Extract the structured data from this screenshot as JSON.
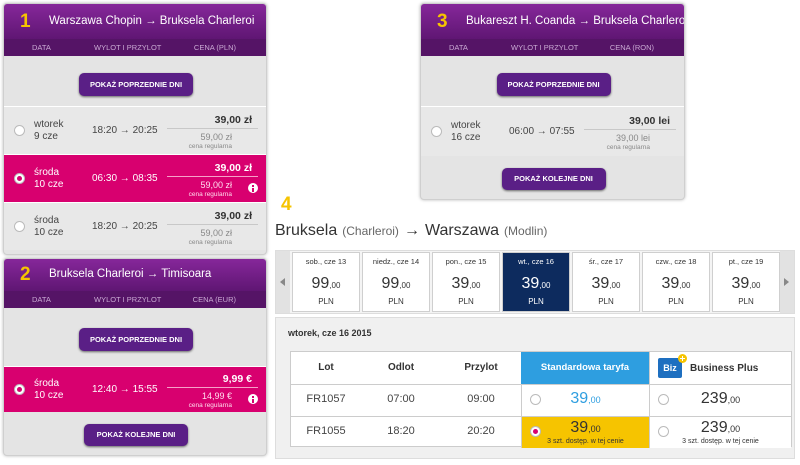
{
  "panels": [
    {
      "number": "1",
      "route": "Warszawa Chopin → Bruksela Charleroi",
      "columns": [
        "DATA",
        "WYLOT I PRZYLOT",
        "CENA (PLN)"
      ],
      "top_button": "POKAŻ POPRZEDNIE DNI",
      "rows": [
        {
          "day": "wtorek",
          "date": "9 cze",
          "times": "18:20 → 20:25",
          "price": "39,00 zł",
          "regular_price": "59,00 zł",
          "regular_label": "cena regularna",
          "selected": false
        },
        {
          "day": "środa",
          "date": "10 cze",
          "times": "06:30 → 08:35",
          "price": "39,00 zł",
          "regular_price": "59,00 zł",
          "regular_label": "cena regularna",
          "selected": true
        },
        {
          "day": "środa",
          "date": "10 cze",
          "times": "18:20 → 20:25",
          "price": "39,00 zł",
          "regular_price": "59,00 zł",
          "regular_label": "cena regularna",
          "selected": false
        }
      ]
    },
    {
      "number": "2",
      "route": "Bruksela Charleroi → Timisoara",
      "columns": [
        "DATA",
        "WYLOT I PRZYLOT",
        "CENA (EUR)"
      ],
      "top_button": "POKAŻ POPRZEDNIE DNI",
      "rows": [
        {
          "day": "środa",
          "date": "10 cze",
          "times": "12:40 → 15:55",
          "price": "9,99 €",
          "regular_price": "14,99 €",
          "regular_label": "cena regularna",
          "selected": true
        }
      ],
      "bottom_button": "POKAŻ KOLEJNE DNI"
    },
    {
      "number": "3",
      "route": "Bukareszt H. Coanda → Bruksela Charleroi",
      "columns": [
        "DATA",
        "WYLOT I PRZYLOT",
        "CENA (RON)"
      ],
      "top_button": "POKAŻ POPRZEDNIE DNI",
      "rows": [
        {
          "day": "wtorek",
          "date": "16 cze",
          "times": "06:00 → 07:55",
          "price": "39,00 lei",
          "regular_price": "39,00 lei",
          "regular_label": "cena regularna",
          "selected": false
        }
      ],
      "bottom_button": "POKAŻ KOLEJNE DNI"
    }
  ],
  "flight_search": {
    "number": "4",
    "from": "Bruksela",
    "from_airport": "(Charleroi)",
    "arrow": "→",
    "to": "Warszawa",
    "to_airport": "(Modlin)",
    "days": [
      {
        "label": "sob., cze 13",
        "price": "99",
        "decimals": ",00",
        "currency": "PLN",
        "selected": false
      },
      {
        "label": "niedz., cze 14",
        "price": "99",
        "decimals": ",00",
        "currency": "PLN",
        "selected": false
      },
      {
        "label": "pon., cze 15",
        "price": "39",
        "decimals": ",00",
        "currency": "PLN",
        "selected": false
      },
      {
        "label": "wt., cze 16",
        "price": "39",
        "decimals": ",00",
        "currency": "PLN",
        "selected": true
      },
      {
        "label": "śr., cze 17",
        "price": "39",
        "decimals": ",00",
        "currency": "PLN",
        "selected": false
      },
      {
        "label": "czw., cze 18",
        "price": "39",
        "decimals": ",00",
        "currency": "PLN",
        "selected": false
      },
      {
        "label": "pt., cze 19",
        "price": "39",
        "decimals": ",00",
        "currency": "PLN",
        "selected": false
      }
    ],
    "date_heading": "wtorek, cze 16 2015",
    "table": {
      "headers": [
        "Lot",
        "Odlot",
        "Przylot",
        "Standardowa taryfa"
      ],
      "biz_logo": "Biz",
      "business_header": "Business Plus",
      "rows": [
        {
          "flight": "FR1057",
          "departure": "07:00",
          "arrival": "09:00",
          "standard": {
            "price": "39",
            "decimals": ",00",
            "selected": false
          },
          "business": {
            "price": "239",
            "decimals": ",00"
          }
        },
        {
          "flight": "FR1055",
          "departure": "18:20",
          "arrival": "20:20",
          "standard": {
            "price": "39",
            "decimals": ",00",
            "availability": "3 szt. dostęp. w tej cenie",
            "selected": true
          },
          "business": {
            "price": "239",
            "decimals": ",00",
            "availability": "3 szt. dostęp. w tej cenie"
          }
        }
      ]
    }
  }
}
